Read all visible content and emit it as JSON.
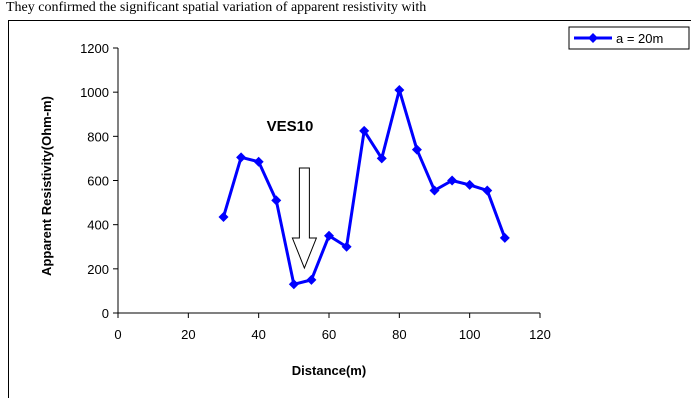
{
  "caption": "They confirmed the significant spatial variation of apparent resistivity with",
  "chart_data": {
    "type": "line",
    "title": "",
    "xlabel": "Distance(m)",
    "ylabel": "Apparent Resistivity(Ohm-m)",
    "xlim": [
      0,
      120
    ],
    "ylim": [
      0,
      1200
    ],
    "xticks": [
      0,
      20,
      40,
      60,
      80,
      100,
      120
    ],
    "yticks": [
      0,
      200,
      400,
      600,
      800,
      1000,
      1200
    ],
    "grid": false,
    "legend_position": "top-right",
    "series": [
      {
        "name": "a = 20m",
        "color": "#0000ff",
        "marker": "diamond",
        "x": [
          30,
          35,
          40,
          45,
          50,
          55,
          60,
          65,
          70,
          75,
          80,
          85,
          90,
          95,
          100,
          105,
          110
        ],
        "y": [
          435,
          705,
          685,
          510,
          130,
          150,
          350,
          300,
          825,
          700,
          1010,
          740,
          555,
          600,
          580,
          555,
          340
        ]
      }
    ],
    "annotations": [
      {
        "text": "VES10",
        "type": "label"
      },
      {
        "text": "",
        "type": "down-arrow",
        "x": 53
      }
    ]
  }
}
